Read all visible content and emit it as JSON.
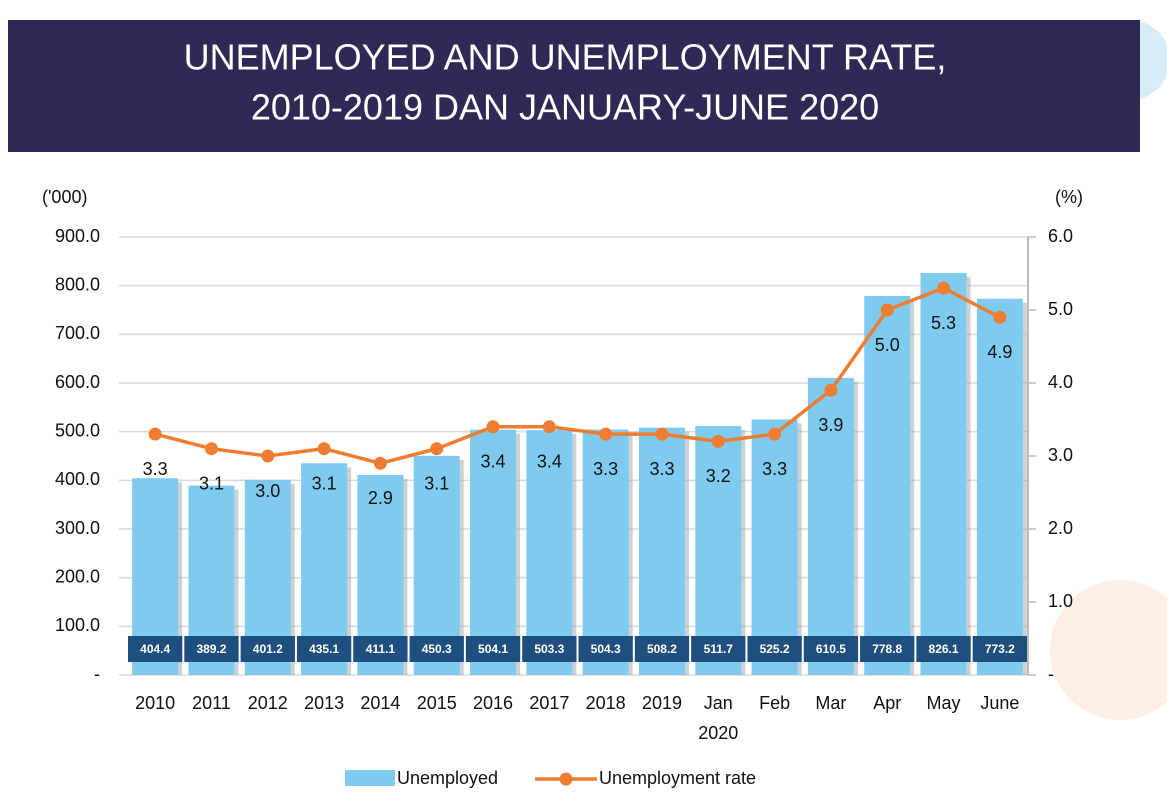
{
  "chart_data": {
    "type": "bar-line",
    "title": [
      "UNEMPLOYED AND UNEMPLOYMENT RATE,",
      "2010-2019 DAN JANUARY-JUNE 2020"
    ],
    "y_label": "('000)",
    "y2_label": "(%)",
    "categories": [
      "2010",
      "2011",
      "2012",
      "2013",
      "2014",
      "2015",
      "2016",
      "2017",
      "2018",
      "2019",
      "Jan",
      "Feb",
      "Mar",
      "Apr",
      "May",
      "June"
    ],
    "category_sublabels": {
      "10": "2020"
    },
    "series": [
      {
        "name": "Unemployed",
        "type": "bar",
        "color": "#7fcbf0",
        "label_box_color": "#1f4f7e",
        "values": [
          404.4,
          389.2,
          401.2,
          435.1,
          411.1,
          450.3,
          504.1,
          503.3,
          504.3,
          508.2,
          511.7,
          525.2,
          610.5,
          778.8,
          826.1,
          773.2
        ]
      },
      {
        "name": "Unemployment rate",
        "type": "line",
        "axis": "y2",
        "color": "#ee7d31",
        "values": [
          3.3,
          3.1,
          3.0,
          3.1,
          2.9,
          3.1,
          3.4,
          3.4,
          3.3,
          3.3,
          3.2,
          3.3,
          3.9,
          5.0,
          5.3,
          4.9
        ],
        "value_labels": [
          "3.3",
          "3.1",
          "3.0",
          "3.1",
          "2.9",
          "3.1",
          "3.4",
          "3.4",
          "3.3",
          "3.3",
          "3.2",
          "3.3",
          "3.9",
          "5.0",
          "5.3",
          "4.9"
        ]
      }
    ],
    "ylim": [
      0,
      900
    ],
    "yticks": [
      {
        "value": 0,
        "label": "-"
      },
      {
        "value": 100,
        "label": "100.0"
      },
      {
        "value": 200,
        "label": "200.0"
      },
      {
        "value": 300,
        "label": "300.0"
      },
      {
        "value": 400,
        "label": "400.0"
      },
      {
        "value": 500,
        "label": "500.0"
      },
      {
        "value": 600,
        "label": "600.0"
      },
      {
        "value": 700,
        "label": "700.0"
      },
      {
        "value": 800,
        "label": "800.0"
      },
      {
        "value": 900,
        "label": "900.0"
      }
    ],
    "y2lim": [
      0,
      6
    ],
    "y2ticks": [
      {
        "value": 0,
        "label": "-"
      },
      {
        "value": 1,
        "label": "1.0"
      },
      {
        "value": 2,
        "label": "2.0"
      },
      {
        "value": 3,
        "label": "3.0"
      },
      {
        "value": 4,
        "label": "4.0"
      },
      {
        "value": 5,
        "label": "5.0"
      },
      {
        "value": 6,
        "label": "6.0"
      }
    ],
    "grid": true,
    "legend": "bottom"
  }
}
